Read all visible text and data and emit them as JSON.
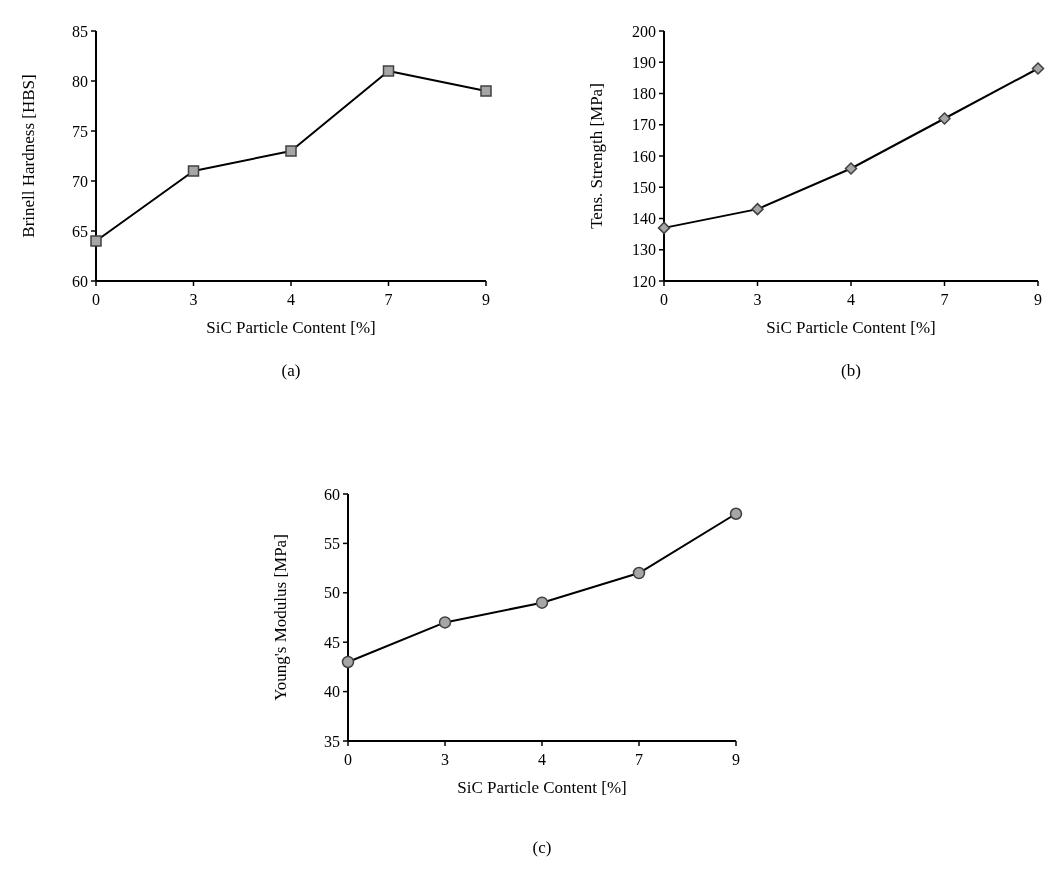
{
  "chart_data": [
    {
      "type": "line",
      "categories": [
        "0",
        "3",
        "4",
        "7",
        "9"
      ],
      "xlabel": "SiC Particle Content [%]",
      "ylabel": "Brinell Hardness  [HBS]",
      "ylim": [
        60,
        85
      ],
      "yticks": [
        60,
        65,
        70,
        75,
        80,
        85
      ],
      "marker": "square",
      "grid": false,
      "annotations": [
        "(a)"
      ],
      "series": [
        {
          "color": "#000000",
          "values": [
            64,
            71,
            73,
            81,
            79
          ]
        }
      ]
    },
    {
      "type": "line",
      "categories": [
        "0",
        "3",
        "4",
        "7",
        "9"
      ],
      "xlabel": "SiC Particle Content [%]",
      "ylabel": "Tens. Strength  [MPa]",
      "ylim": [
        120,
        200
      ],
      "yticks": [
        120,
        130,
        140,
        150,
        160,
        170,
        180,
        190,
        200
      ],
      "marker": "diamond",
      "grid": false,
      "annotations": [
        "(b)"
      ],
      "series": [
        {
          "color": "#000000",
          "values": [
            137,
            143,
            156,
            172,
            188
          ]
        }
      ]
    },
    {
      "type": "line",
      "categories": [
        "0",
        "3",
        "4",
        "7",
        "9"
      ],
      "xlabel": "SiC Particle Content [%]",
      "ylabel": "Young's Modulus  [MPa]",
      "ylim": [
        35,
        60
      ],
      "yticks": [
        35,
        40,
        45,
        50,
        55,
        60
      ],
      "marker": "circle",
      "grid": false,
      "annotations": [
        "(c)"
      ],
      "series": [
        {
          "color": "#000000",
          "values": [
            43,
            47,
            49,
            52,
            58
          ]
        }
      ]
    }
  ]
}
